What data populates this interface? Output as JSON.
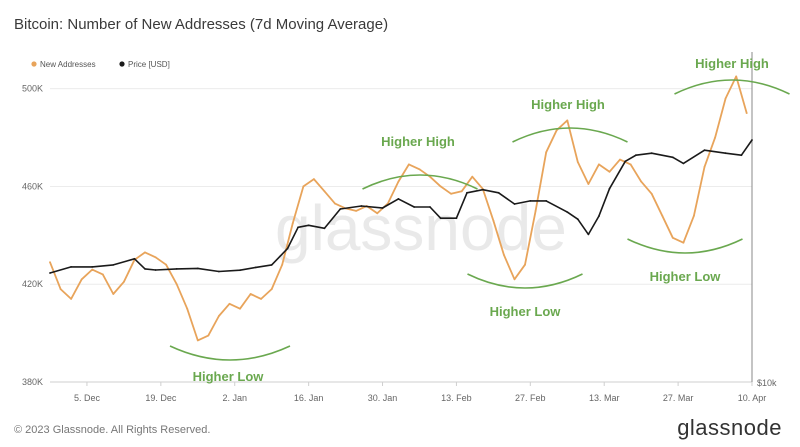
{
  "header": {
    "title": "Bitcoin: Number of New Addresses (7d Moving Average)"
  },
  "footer": {
    "copyright": "© 2023 Glassnode. All Rights Reserved.",
    "brand": "glassnode"
  },
  "watermark": "glassnode",
  "chart_data": {
    "type": "line",
    "title": "Bitcoin: Number of New Addresses (7d Moving Average)",
    "x_ticks": [
      "5. Dec",
      "19. Dec",
      "2. Jan",
      "16. Jan",
      "30. Jan",
      "13. Feb",
      "27. Feb",
      "13. Mar",
      "27. Mar",
      "10. Apr"
    ],
    "y_ticks": [
      "380K",
      "420K",
      "460K",
      "500K"
    ],
    "y_right_label": "$10k",
    "ylim": [
      380000,
      515000
    ],
    "legend_position": "top-left",
    "grid": "horizontal",
    "series": [
      {
        "name": "New Addresses",
        "color": "#e8a45b",
        "axis": "left",
        "points": [
          [
            "2022-11-28",
            429000
          ],
          [
            "2022-11-30",
            418000
          ],
          [
            "2022-12-02",
            414000
          ],
          [
            "2022-12-04",
            422000
          ],
          [
            "2022-12-06",
            426000
          ],
          [
            "2022-12-08",
            424000
          ],
          [
            "2022-12-10",
            416000
          ],
          [
            "2022-12-12",
            421000
          ],
          [
            "2022-12-14",
            430000
          ],
          [
            "2022-12-16",
            433000
          ],
          [
            "2022-12-18",
            431000
          ],
          [
            "2022-12-20",
            428000
          ],
          [
            "2022-12-22",
            420000
          ],
          [
            "2022-12-24",
            410000
          ],
          [
            "2022-12-26",
            397000
          ],
          [
            "2022-12-28",
            399000
          ],
          [
            "2022-12-30",
            407000
          ],
          [
            "2023-01-01",
            412000
          ],
          [
            "2023-01-03",
            410000
          ],
          [
            "2023-01-05",
            416000
          ],
          [
            "2023-01-07",
            414000
          ],
          [
            "2023-01-09",
            418000
          ],
          [
            "2023-01-11",
            428000
          ],
          [
            "2023-01-13",
            445000
          ],
          [
            "2023-01-15",
            460000
          ],
          [
            "2023-01-17",
            463000
          ],
          [
            "2023-01-19",
            458000
          ],
          [
            "2023-01-21",
            453000
          ],
          [
            "2023-01-23",
            451000
          ],
          [
            "2023-01-25",
            450000
          ],
          [
            "2023-01-27",
            452000
          ],
          [
            "2023-01-29",
            449000
          ],
          [
            "2023-01-31",
            453000
          ],
          [
            "2023-02-02",
            462000
          ],
          [
            "2023-02-04",
            469000
          ],
          [
            "2023-02-06",
            467000
          ],
          [
            "2023-02-08",
            464000
          ],
          [
            "2023-02-10",
            460000
          ],
          [
            "2023-02-12",
            457000
          ],
          [
            "2023-02-14",
            458000
          ],
          [
            "2023-02-16",
            464000
          ],
          [
            "2023-02-18",
            459000
          ],
          [
            "2023-02-20",
            446000
          ],
          [
            "2023-02-22",
            432000
          ],
          [
            "2023-02-24",
            422000
          ],
          [
            "2023-02-26",
            428000
          ],
          [
            "2023-02-28",
            450000
          ],
          [
            "2023-03-02",
            474000
          ],
          [
            "2023-03-04",
            483000
          ],
          [
            "2023-03-06",
            487000
          ],
          [
            "2023-03-08",
            470000
          ],
          [
            "2023-03-10",
            461000
          ],
          [
            "2023-03-12",
            469000
          ],
          [
            "2023-03-14",
            466000
          ],
          [
            "2023-03-16",
            471000
          ],
          [
            "2023-03-18",
            469000
          ],
          [
            "2023-03-20",
            462000
          ],
          [
            "2023-03-22",
            457000
          ],
          [
            "2023-03-24",
            448000
          ],
          [
            "2023-03-26",
            439000
          ],
          [
            "2023-03-28",
            437000
          ],
          [
            "2023-03-30",
            448000
          ],
          [
            "2023-04-01",
            468000
          ],
          [
            "2023-04-03",
            480000
          ],
          [
            "2023-04-05",
            496000
          ],
          [
            "2023-04-07",
            505000
          ],
          [
            "2023-04-09",
            490000
          ]
        ]
      },
      {
        "name": "Price [USD]",
        "color": "#1a1a1a",
        "axis": "right",
        "points": [
          [
            "2022-11-28",
            16400
          ],
          [
            "2022-12-02",
            17000
          ],
          [
            "2022-12-06",
            17000
          ],
          [
            "2022-12-10",
            17200
          ],
          [
            "2022-12-14",
            17800
          ],
          [
            "2022-12-16",
            16800
          ],
          [
            "2022-12-18",
            16700
          ],
          [
            "2022-12-22",
            16800
          ],
          [
            "2022-12-26",
            16850
          ],
          [
            "2022-12-30",
            16550
          ],
          [
            "2023-01-03",
            16680
          ],
          [
            "2023-01-06",
            16950
          ],
          [
            "2023-01-09",
            17200
          ],
          [
            "2023-01-12",
            18800
          ],
          [
            "2023-01-14",
            20900
          ],
          [
            "2023-01-16",
            21100
          ],
          [
            "2023-01-19",
            20800
          ],
          [
            "2023-01-22",
            22700
          ],
          [
            "2023-01-26",
            23000
          ],
          [
            "2023-01-30",
            22800
          ],
          [
            "2023-02-02",
            23700
          ],
          [
            "2023-02-05",
            22900
          ],
          [
            "2023-02-08",
            22900
          ],
          [
            "2023-02-10",
            21800
          ],
          [
            "2023-02-13",
            21800
          ],
          [
            "2023-02-15",
            24300
          ],
          [
            "2023-02-18",
            24600
          ],
          [
            "2023-02-21",
            24300
          ],
          [
            "2023-02-24",
            23200
          ],
          [
            "2023-02-27",
            23500
          ],
          [
            "2023-03-02",
            23500
          ],
          [
            "2023-03-06",
            22400
          ],
          [
            "2023-03-08",
            21700
          ],
          [
            "2023-03-10",
            20200
          ],
          [
            "2023-03-12",
            22000
          ],
          [
            "2023-03-14",
            24700
          ],
          [
            "2023-03-17",
            27400
          ],
          [
            "2023-03-19",
            28000
          ],
          [
            "2023-03-22",
            28200
          ],
          [
            "2023-03-26",
            27800
          ],
          [
            "2023-03-28",
            27200
          ],
          [
            "2023-04-01",
            28500
          ],
          [
            "2023-04-05",
            28200
          ],
          [
            "2023-04-08",
            28000
          ],
          [
            "2023-04-10",
            29500
          ]
        ]
      }
    ],
    "annotations": [
      {
        "label": "Higher Low",
        "type": "low"
      },
      {
        "label": "Higher High",
        "type": "high"
      },
      {
        "label": "Higher Low",
        "type": "low"
      },
      {
        "label": "Higher High",
        "type": "high"
      },
      {
        "label": "Higher Low",
        "type": "low"
      },
      {
        "label": "Higher High",
        "type": "high"
      }
    ]
  }
}
